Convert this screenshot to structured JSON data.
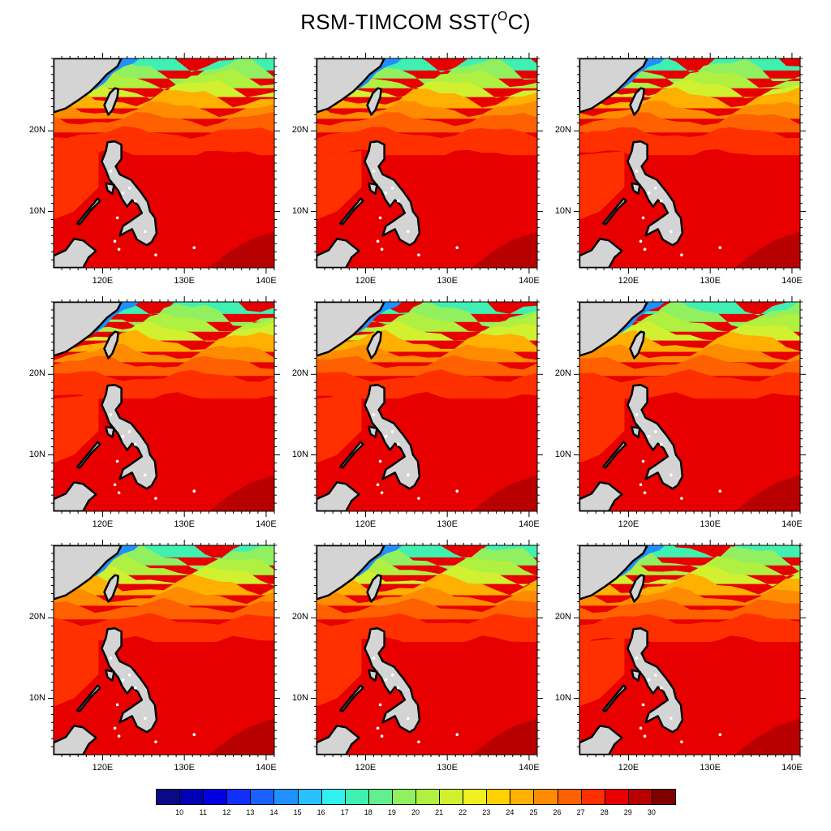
{
  "title": {
    "main": "RSM-TIMCOM SST(",
    "sup": "O",
    "tail": "C)"
  },
  "map_panels": [
    {
      "id": 1
    },
    {
      "id": 2
    },
    {
      "id": 3
    },
    {
      "id": 4
    },
    {
      "id": 5
    },
    {
      "id": 6
    },
    {
      "id": 7
    },
    {
      "id": 8
    },
    {
      "id": 9
    }
  ],
  "axes": {
    "lat_labels": [
      "20N",
      "10N"
    ],
    "lon_labels": [
      "120E",
      "130E",
      "140E"
    ],
    "lon_range": [
      114,
      141
    ],
    "lat_range": [
      3,
      29
    ],
    "lon_ticks": [
      120,
      130,
      140
    ],
    "lat_ticks": [
      10,
      20
    ]
  },
  "colorbar": {
    "labels": [
      "10",
      "11",
      "12",
      "13",
      "14",
      "15",
      "16",
      "17",
      "18",
      "19",
      "20",
      "21",
      "22",
      "23",
      "24",
      "25",
      "26",
      "27",
      "28",
      "29",
      "30"
    ],
    "colors": [
      "#0a0a86",
      "#0000b4",
      "#0000e0",
      "#1030ff",
      "#1a60ff",
      "#2090ff",
      "#28c0ff",
      "#30f0f0",
      "#40f0b0",
      "#60f090",
      "#90f060",
      "#b0f040",
      "#d0f030",
      "#f0f020",
      "#ffd000",
      "#ffb000",
      "#ff8c00",
      "#ff6000",
      "#ff3000",
      "#e80000",
      "#b80000",
      "#800000"
    ]
  },
  "colors": {
    "land": "#d4d4d4",
    "coast": "#000000"
  }
}
